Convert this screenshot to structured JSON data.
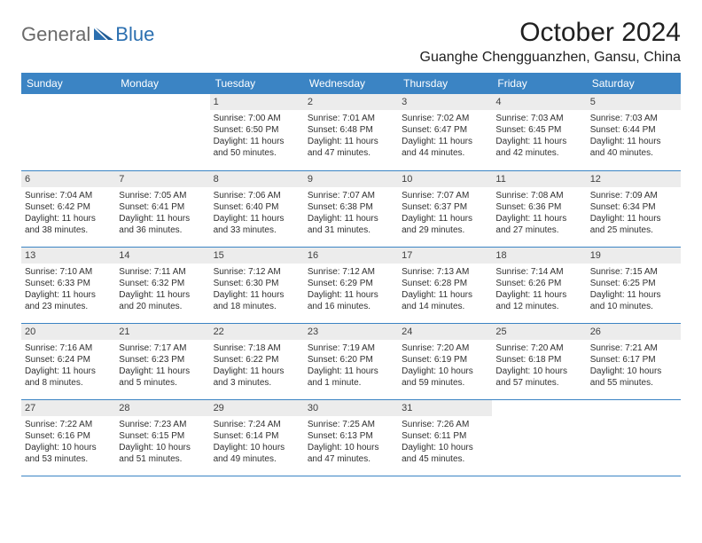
{
  "logo": {
    "general": "General",
    "blue": "Blue"
  },
  "title": "October 2024",
  "location": "Guanghe Chengguanzhen, Gansu, China",
  "colors": {
    "header_bg": "#3b84c4",
    "header_text": "#ffffff",
    "daynum_bg": "#ececec",
    "border": "#3b84c4",
    "logo_gray": "#6a6a6a",
    "logo_blue": "#2b6fb0",
    "text": "#202020",
    "background": "#ffffff"
  },
  "dayHeaders": [
    "Sunday",
    "Monday",
    "Tuesday",
    "Wednesday",
    "Thursday",
    "Friday",
    "Saturday"
  ],
  "weeks": [
    [
      null,
      null,
      {
        "n": "1",
        "sr": "Sunrise: 7:00 AM",
        "ss": "Sunset: 6:50 PM",
        "dl": "Daylight: 11 hours and 50 minutes."
      },
      {
        "n": "2",
        "sr": "Sunrise: 7:01 AM",
        "ss": "Sunset: 6:48 PM",
        "dl": "Daylight: 11 hours and 47 minutes."
      },
      {
        "n": "3",
        "sr": "Sunrise: 7:02 AM",
        "ss": "Sunset: 6:47 PM",
        "dl": "Daylight: 11 hours and 44 minutes."
      },
      {
        "n": "4",
        "sr": "Sunrise: 7:03 AM",
        "ss": "Sunset: 6:45 PM",
        "dl": "Daylight: 11 hours and 42 minutes."
      },
      {
        "n": "5",
        "sr": "Sunrise: 7:03 AM",
        "ss": "Sunset: 6:44 PM",
        "dl": "Daylight: 11 hours and 40 minutes."
      }
    ],
    [
      {
        "n": "6",
        "sr": "Sunrise: 7:04 AM",
        "ss": "Sunset: 6:42 PM",
        "dl": "Daylight: 11 hours and 38 minutes."
      },
      {
        "n": "7",
        "sr": "Sunrise: 7:05 AM",
        "ss": "Sunset: 6:41 PM",
        "dl": "Daylight: 11 hours and 36 minutes."
      },
      {
        "n": "8",
        "sr": "Sunrise: 7:06 AM",
        "ss": "Sunset: 6:40 PM",
        "dl": "Daylight: 11 hours and 33 minutes."
      },
      {
        "n": "9",
        "sr": "Sunrise: 7:07 AM",
        "ss": "Sunset: 6:38 PM",
        "dl": "Daylight: 11 hours and 31 minutes."
      },
      {
        "n": "10",
        "sr": "Sunrise: 7:07 AM",
        "ss": "Sunset: 6:37 PM",
        "dl": "Daylight: 11 hours and 29 minutes."
      },
      {
        "n": "11",
        "sr": "Sunrise: 7:08 AM",
        "ss": "Sunset: 6:36 PM",
        "dl": "Daylight: 11 hours and 27 minutes."
      },
      {
        "n": "12",
        "sr": "Sunrise: 7:09 AM",
        "ss": "Sunset: 6:34 PM",
        "dl": "Daylight: 11 hours and 25 minutes."
      }
    ],
    [
      {
        "n": "13",
        "sr": "Sunrise: 7:10 AM",
        "ss": "Sunset: 6:33 PM",
        "dl": "Daylight: 11 hours and 23 minutes."
      },
      {
        "n": "14",
        "sr": "Sunrise: 7:11 AM",
        "ss": "Sunset: 6:32 PM",
        "dl": "Daylight: 11 hours and 20 minutes."
      },
      {
        "n": "15",
        "sr": "Sunrise: 7:12 AM",
        "ss": "Sunset: 6:30 PM",
        "dl": "Daylight: 11 hours and 18 minutes."
      },
      {
        "n": "16",
        "sr": "Sunrise: 7:12 AM",
        "ss": "Sunset: 6:29 PM",
        "dl": "Daylight: 11 hours and 16 minutes."
      },
      {
        "n": "17",
        "sr": "Sunrise: 7:13 AM",
        "ss": "Sunset: 6:28 PM",
        "dl": "Daylight: 11 hours and 14 minutes."
      },
      {
        "n": "18",
        "sr": "Sunrise: 7:14 AM",
        "ss": "Sunset: 6:26 PM",
        "dl": "Daylight: 11 hours and 12 minutes."
      },
      {
        "n": "19",
        "sr": "Sunrise: 7:15 AM",
        "ss": "Sunset: 6:25 PM",
        "dl": "Daylight: 11 hours and 10 minutes."
      }
    ],
    [
      {
        "n": "20",
        "sr": "Sunrise: 7:16 AM",
        "ss": "Sunset: 6:24 PM",
        "dl": "Daylight: 11 hours and 8 minutes."
      },
      {
        "n": "21",
        "sr": "Sunrise: 7:17 AM",
        "ss": "Sunset: 6:23 PM",
        "dl": "Daylight: 11 hours and 5 minutes."
      },
      {
        "n": "22",
        "sr": "Sunrise: 7:18 AM",
        "ss": "Sunset: 6:22 PM",
        "dl": "Daylight: 11 hours and 3 minutes."
      },
      {
        "n": "23",
        "sr": "Sunrise: 7:19 AM",
        "ss": "Sunset: 6:20 PM",
        "dl": "Daylight: 11 hours and 1 minute."
      },
      {
        "n": "24",
        "sr": "Sunrise: 7:20 AM",
        "ss": "Sunset: 6:19 PM",
        "dl": "Daylight: 10 hours and 59 minutes."
      },
      {
        "n": "25",
        "sr": "Sunrise: 7:20 AM",
        "ss": "Sunset: 6:18 PM",
        "dl": "Daylight: 10 hours and 57 minutes."
      },
      {
        "n": "26",
        "sr": "Sunrise: 7:21 AM",
        "ss": "Sunset: 6:17 PM",
        "dl": "Daylight: 10 hours and 55 minutes."
      }
    ],
    [
      {
        "n": "27",
        "sr": "Sunrise: 7:22 AM",
        "ss": "Sunset: 6:16 PM",
        "dl": "Daylight: 10 hours and 53 minutes."
      },
      {
        "n": "28",
        "sr": "Sunrise: 7:23 AM",
        "ss": "Sunset: 6:15 PM",
        "dl": "Daylight: 10 hours and 51 minutes."
      },
      {
        "n": "29",
        "sr": "Sunrise: 7:24 AM",
        "ss": "Sunset: 6:14 PM",
        "dl": "Daylight: 10 hours and 49 minutes."
      },
      {
        "n": "30",
        "sr": "Sunrise: 7:25 AM",
        "ss": "Sunset: 6:13 PM",
        "dl": "Daylight: 10 hours and 47 minutes."
      },
      {
        "n": "31",
        "sr": "Sunrise: 7:26 AM",
        "ss": "Sunset: 6:11 PM",
        "dl": "Daylight: 10 hours and 45 minutes."
      },
      null,
      null
    ]
  ]
}
